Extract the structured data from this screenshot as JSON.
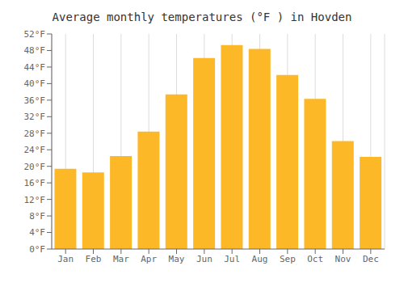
{
  "chart_data": {
    "type": "bar",
    "title": "Average monthly temperatures (°F ) in Hovden",
    "categories": [
      "Jan",
      "Feb",
      "Mar",
      "Apr",
      "May",
      "Jun",
      "Jul",
      "Aug",
      "Sep",
      "Oct",
      "Nov",
      "Dec"
    ],
    "values": [
      19.4,
      18.5,
      22.5,
      28.4,
      37.4,
      46.2,
      49.3,
      48.4,
      42.1,
      36.3,
      26.1,
      22.3
    ],
    "color": "#FDB827",
    "ylim": [
      0,
      52
    ],
    "yticks": [
      {
        "value": 0,
        "label": "0°F"
      },
      {
        "value": 4,
        "label": "4°F"
      },
      {
        "value": 8,
        "label": "8°F"
      },
      {
        "value": 12,
        "label": "12°F"
      },
      {
        "value": 16,
        "label": "16°F"
      },
      {
        "value": 20,
        "label": "20°F"
      },
      {
        "value": 24,
        "label": "24°F"
      },
      {
        "value": 28,
        "label": "28°F"
      },
      {
        "value": 32,
        "label": "32°F"
      },
      {
        "value": 36,
        "label": "36°F"
      },
      {
        "value": 40,
        "label": "40°F"
      },
      {
        "value": 44,
        "label": "44°F"
      },
      {
        "value": 48,
        "label": "48°F"
      },
      {
        "value": 52,
        "label": "52°F"
      }
    ],
    "grid": "x"
  }
}
